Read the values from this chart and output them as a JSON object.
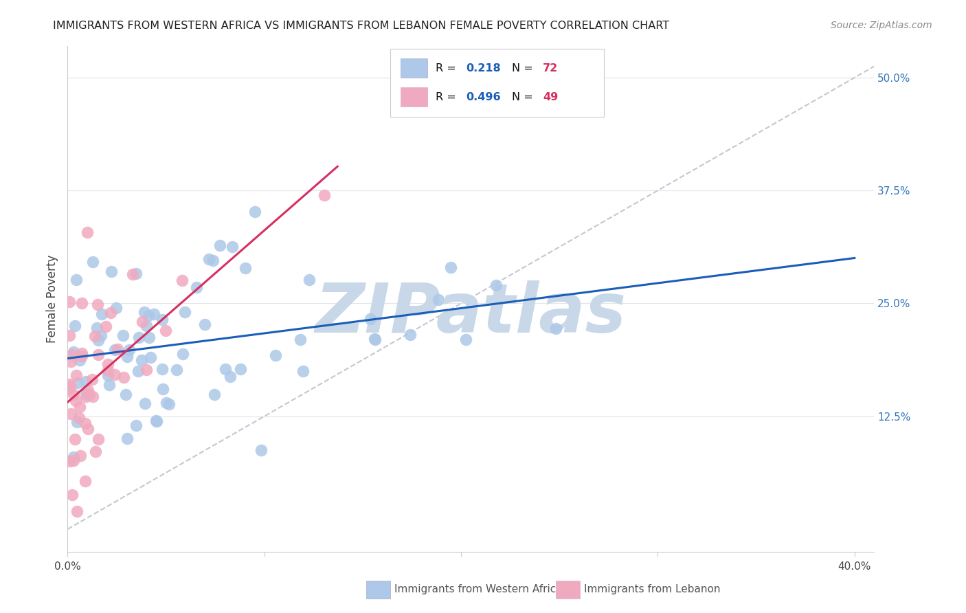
{
  "title": "IMMIGRANTS FROM WESTERN AFRICA VS IMMIGRANTS FROM LEBANON FEMALE POVERTY CORRELATION CHART",
  "source": "Source: ZipAtlas.com",
  "ylabel": "Female Poverty",
  "ytick_labels": [
    "12.5%",
    "25.0%",
    "37.5%",
    "50.0%"
  ],
  "ytick_values": [
    0.125,
    0.25,
    0.375,
    0.5
  ],
  "xtick_labels": [
    "0.0%",
    "",
    "",
    "",
    "40.0%"
  ],
  "xtick_values": [
    0.0,
    0.1,
    0.2,
    0.3,
    0.4
  ],
  "xlim": [
    0.0,
    0.41
  ],
  "ylim": [
    -0.025,
    0.535
  ],
  "blue_R": 0.218,
  "blue_N": 72,
  "pink_R": 0.496,
  "pink_N": 49,
  "blue_scatter_color": "#adc8e8",
  "pink_scatter_color": "#f0aabf",
  "blue_line_color": "#1a5eb8",
  "pink_line_color": "#d63060",
  "diag_line_color": "#c0c0cc",
  "watermark_text": "ZIPatlas",
  "watermark_color": "#c8d8e8",
  "bg_color": "#ffffff",
  "title_color": "#222222",
  "source_color": "#888888",
  "axis_label_color": "#444444",
  "y_tick_color": "#3377bb",
  "x_tick_color": "#444444",
  "grid_color": "#e4e4ec",
  "legend_text_color": "#111111",
  "legend_R_color": "#1a5eb8",
  "legend_N_color": "#d63060",
  "bottom_legend_color": "#555555"
}
